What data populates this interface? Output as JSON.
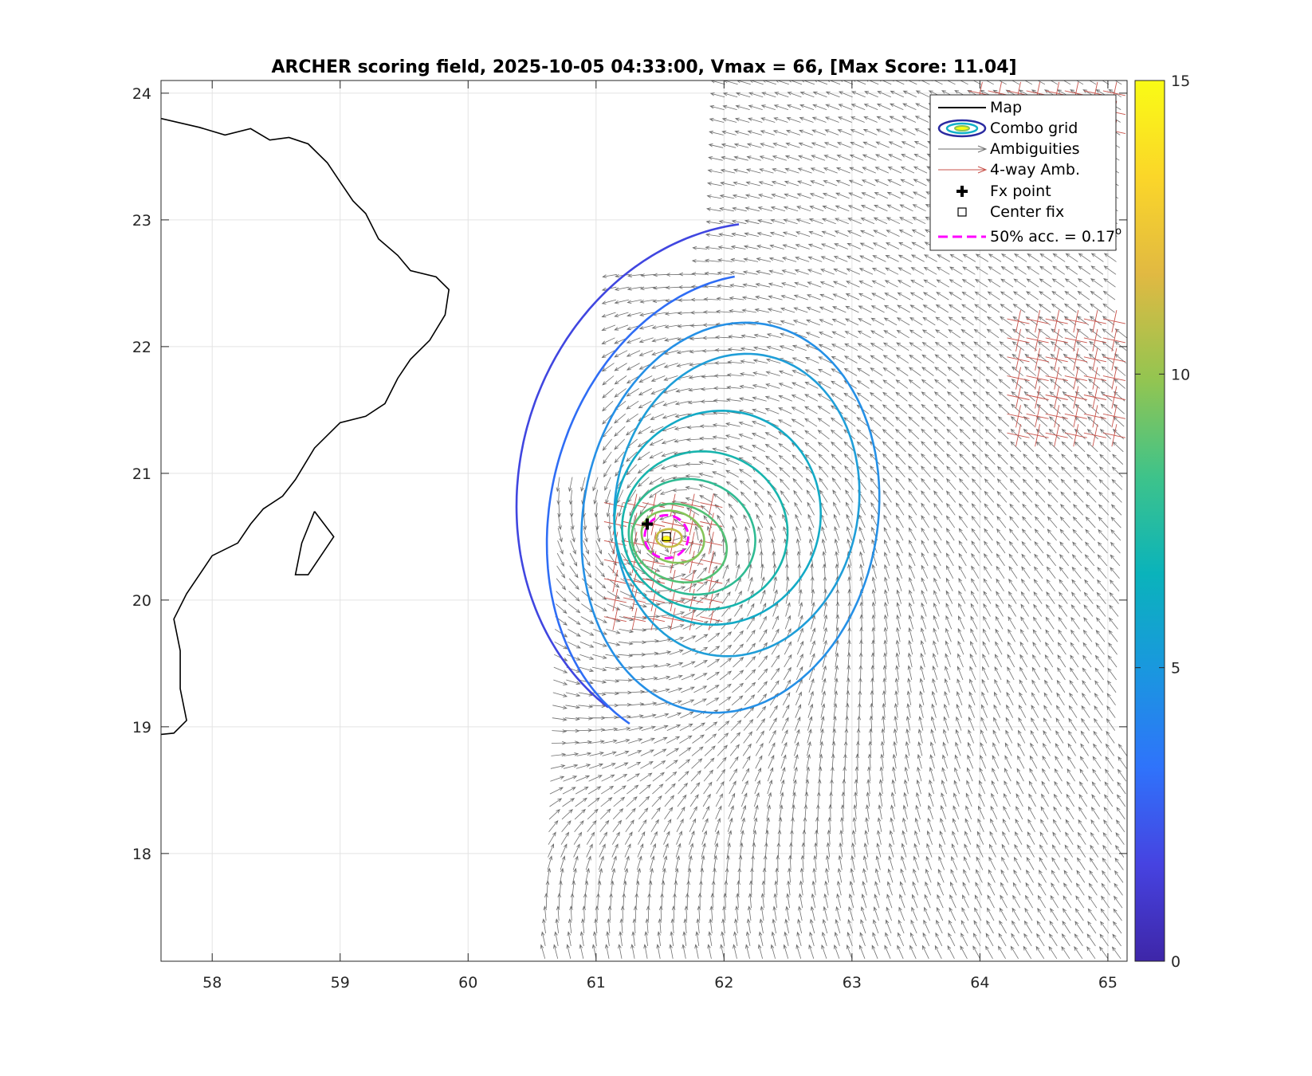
{
  "chart_data": {
    "type": "scatter",
    "subtype": "contour-map-with-wind-vectors",
    "title": "ARCHER scoring field, 2025-10-05 04:33:00, Vmax = 66, [Max Score: 11.04]",
    "xlabel": "",
    "ylabel": "",
    "xlim": [
      57.6,
      65.15
    ],
    "ylim": [
      17.15,
      24.1
    ],
    "x_ticks": [
      "58",
      "59",
      "60",
      "61",
      "62",
      "63",
      "64",
      "65"
    ],
    "y_ticks": [
      "18",
      "19",
      "20",
      "21",
      "22",
      "23",
      "24"
    ],
    "grid": true,
    "colorbar": {
      "range": [
        0,
        15
      ],
      "ticks": [
        "0",
        "5",
        "10",
        "15"
      ],
      "colormap": [
        "#3e26a8",
        "#4643e1",
        "#2f73fb",
        "#1a97df",
        "#0ab3bb",
        "#3ec38a",
        "#93c551",
        "#e1b942",
        "#fbd629",
        "#f9fb15"
      ]
    },
    "legend": {
      "position": "top-right",
      "items": [
        {
          "label": "Map",
          "icon": "black-line"
        },
        {
          "label": "Combo grid",
          "icon": "contour-ellipse"
        },
        {
          "label": "Ambiguities",
          "icon": "gray-arrow"
        },
        {
          "label": "4-way Amb.",
          "icon": "red-arrow"
        },
        {
          "label": "Fx point",
          "icon": "black-plus"
        },
        {
          "label": "Center fix",
          "icon": "open-square"
        },
        {
          "label": "50% acc. = 0.17",
          "suffix": "o",
          "icon": "magenta-dash"
        }
      ]
    },
    "center_fix": {
      "lon": 61.55,
      "lat": 20.5
    },
    "fx_point": {
      "lon": 61.4,
      "lat": 20.6
    },
    "accuracy_circle": {
      "lon": 61.55,
      "lat": 20.5,
      "radius_deg": 0.17,
      "color": "#ff00ff"
    },
    "max_score_point": {
      "lon": 61.55,
      "lat": 20.48
    },
    "contour_levels": [
      {
        "level": 3.5,
        "color": "#4046e0",
        "cx": 62.2,
        "cy": 20.9,
        "a": 1.8,
        "b": 2.1,
        "rot": -15,
        "start": 110,
        "end": 250
      },
      {
        "level": 4.3,
        "color": "#2f6df5",
        "cx": 62.1,
        "cy": 20.7,
        "a": 1.45,
        "b": 1.9,
        "rot": -15,
        "start": 110,
        "end": 255
      },
      {
        "level": 5.0,
        "color": "#2590e6",
        "cx": 62.05,
        "cy": 20.65,
        "a": 1.15,
        "b": 1.55,
        "rot": -10,
        "start": 0,
        "end": 360
      },
      {
        "level": 5.6,
        "color": "#1f9ed8",
        "cx": 62.1,
        "cy": 20.75,
        "a": 0.95,
        "b": 1.2,
        "rot": -10,
        "start": 0,
        "end": 360
      },
      {
        "level": 6.4,
        "color": "#13aac6",
        "cx": 61.95,
        "cy": 20.65,
        "a": 0.8,
        "b": 0.85,
        "rot": -20,
        "start": 0,
        "end": 360
      },
      {
        "level": 7.2,
        "color": "#17b4ad",
        "cx": 61.85,
        "cy": 20.55,
        "a": 0.65,
        "b": 0.62,
        "rot": -20,
        "start": 0,
        "end": 360
      },
      {
        "level": 8.0,
        "color": "#30bb93",
        "cx": 61.75,
        "cy": 20.5,
        "a": 0.5,
        "b": 0.45,
        "rot": -20,
        "start": 0,
        "end": 360
      },
      {
        "level": 8.8,
        "color": "#52c175",
        "cx": 61.65,
        "cy": 20.45,
        "a": 0.38,
        "b": 0.3,
        "rot": -20,
        "start": 0,
        "end": 360
      },
      {
        "level": 9.6,
        "color": "#84c45a",
        "cx": 61.6,
        "cy": 20.5,
        "a": 0.25,
        "b": 0.2,
        "rot": -20,
        "start": 0,
        "end": 360
      },
      {
        "level": 10.5,
        "color": "#c5bd45",
        "cx": 61.57,
        "cy": 20.49,
        "a": 0.1,
        "b": 0.07,
        "rot": 0,
        "start": 0,
        "end": 360
      }
    ],
    "wind_field": {
      "note_units": "arrow field of ambiguity directions over ocean",
      "lon_range": [
        60.6,
        65.15
      ],
      "lat_range": [
        17.15,
        24.1
      ],
      "spacing_deg": 0.1,
      "vortex_center": {
        "lon": 61.6,
        "lat": 20.5
      },
      "ambiguity_color": "#6e6e6e",
      "four_way_color": "#c8524a"
    },
    "four_way_regions": [
      {
        "lon": [
          61.15,
          61.9
        ],
        "lat": [
          19.85,
          20.75
        ]
      },
      {
        "lon": [
          64.3,
          65.15
        ],
        "lat": [
          21.3,
          22.3
        ]
      },
      {
        "lon": [
          64.0,
          65.15
        ],
        "lat": [
          23.7,
          24.1
        ]
      }
    ],
    "coastline": [
      [
        57.6,
        23.8
      ],
      [
        57.9,
        23.73
      ],
      [
        58.1,
        23.67
      ],
      [
        58.3,
        23.72
      ],
      [
        58.45,
        23.63
      ],
      [
        58.6,
        23.65
      ],
      [
        58.75,
        23.6
      ],
      [
        58.9,
        23.45
      ],
      [
        59.0,
        23.3
      ],
      [
        59.1,
        23.15
      ],
      [
        59.2,
        23.05
      ],
      [
        59.3,
        22.85
      ],
      [
        59.45,
        22.72
      ],
      [
        59.55,
        22.6
      ],
      [
        59.75,
        22.55
      ],
      [
        59.85,
        22.45
      ],
      [
        59.82,
        22.25
      ],
      [
        59.7,
        22.05
      ],
      [
        59.55,
        21.9
      ],
      [
        59.45,
        21.75
      ],
      [
        59.35,
        21.55
      ],
      [
        59.2,
        21.45
      ],
      [
        59.0,
        21.4
      ],
      [
        58.8,
        21.2
      ],
      [
        58.65,
        20.95
      ],
      [
        58.55,
        20.82
      ],
      [
        58.4,
        20.72
      ],
      [
        58.3,
        20.6
      ],
      [
        58.2,
        20.45
      ],
      [
        58.0,
        20.35
      ],
      [
        57.9,
        20.2
      ],
      [
        57.8,
        20.05
      ],
      [
        57.7,
        19.85
      ],
      [
        57.75,
        19.6
      ],
      [
        57.75,
        19.3
      ],
      [
        57.8,
        19.05
      ],
      [
        57.7,
        18.95
      ],
      [
        57.6,
        18.94
      ]
    ],
    "island": [
      [
        58.8,
        20.7
      ],
      [
        58.95,
        20.5
      ],
      [
        58.85,
        20.35
      ],
      [
        58.75,
        20.2
      ],
      [
        58.65,
        20.2
      ],
      [
        58.7,
        20.45
      ],
      [
        58.8,
        20.7
      ]
    ]
  }
}
